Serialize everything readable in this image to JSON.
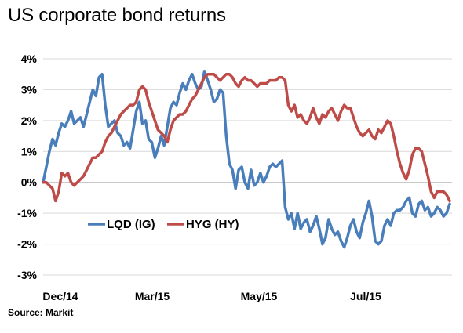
{
  "chart_data": {
    "type": "line",
    "title": "US corporate bond returns",
    "source": "Source: Markit",
    "xlabel": "",
    "ylabel": "",
    "x_ticks": [
      "Dec/14",
      "Mar/15",
      "May/15",
      "Jul/15"
    ],
    "ylim": [
      -3,
      4
    ],
    "y_ticks": [
      "4%",
      "3%",
      "2%",
      "1%",
      "0%",
      "-1%",
      "-2%",
      "-3%"
    ],
    "grid": true,
    "legend_position": "center",
    "series": [
      {
        "name": "LQD (IG)",
        "color": "#4a7ebb",
        "values": [
          0.0,
          0.5,
          1.0,
          1.4,
          1.2,
          1.6,
          1.9,
          1.8,
          2.0,
          2.3,
          1.9,
          2.0,
          2.1,
          1.8,
          2.2,
          2.6,
          3.0,
          2.8,
          3.4,
          3.5,
          2.5,
          1.8,
          1.9,
          2.0,
          1.6,
          1.5,
          1.2,
          1.3,
          1.1,
          1.7,
          2.3,
          2.6,
          1.9,
          2.0,
          1.4,
          1.3,
          0.8,
          1.1,
          1.5,
          1.2,
          1.8,
          2.4,
          2.6,
          2.5,
          2.9,
          3.2,
          3.0,
          3.3,
          3.5,
          3.2,
          3.0,
          3.1,
          3.6,
          3.3,
          3.0,
          2.6,
          2.7,
          3.0,
          2.9,
          1.5,
          0.6,
          0.4,
          -0.2,
          0.4,
          0.5,
          0.0,
          -0.2,
          0.4,
          -0.1,
          0.0,
          0.3,
          0.0,
          0.2,
          0.5,
          0.6,
          0.5,
          0.6,
          0.7,
          -0.8,
          -1.2,
          -1.0,
          -1.5,
          -1.0,
          -1.5,
          -1.3,
          -1.2,
          -1.6,
          -1.4,
          -1.1,
          -1.5,
          -2.0,
          -1.8,
          -1.2,
          -1.5,
          -1.7,
          -1.6,
          -1.9,
          -2.1,
          -1.8,
          -1.4,
          -1.2,
          -1.6,
          -1.8,
          -1.3,
          -1.0,
          -0.6,
          -1.1,
          -1.9,
          -2.0,
          -1.9,
          -1.4,
          -1.2,
          -1.4,
          -1.0,
          -0.9,
          -0.9,
          -0.8,
          -0.6,
          -0.5,
          -1.0,
          -1.1,
          -0.7,
          -0.6,
          -0.9,
          -0.8,
          -1.1,
          -1.0,
          -0.8,
          -0.9,
          -1.1,
          -1.0,
          -0.7
        ]
      },
      {
        "name": "HYG (HY)",
        "color": "#be4b48",
        "values": [
          0.0,
          0.0,
          -0.1,
          -0.2,
          -0.6,
          -0.3,
          0.3,
          0.2,
          0.3,
          0.0,
          -0.1,
          0.0,
          0.1,
          0.2,
          0.4,
          0.6,
          0.8,
          0.8,
          0.9,
          1.0,
          1.3,
          1.5,
          1.6,
          1.8,
          2.0,
          2.2,
          2.3,
          2.4,
          2.5,
          2.5,
          2.6,
          3.0,
          3.1,
          3.0,
          2.6,
          2.3,
          2.0,
          1.7,
          1.6,
          1.5,
          1.3,
          1.7,
          2.0,
          2.1,
          2.2,
          2.2,
          2.3,
          2.5,
          2.7,
          2.8,
          3.0,
          3.2,
          3.4,
          3.5,
          3.5,
          3.5,
          3.4,
          3.3,
          3.4,
          3.5,
          3.5,
          3.4,
          3.2,
          3.1,
          3.3,
          3.4,
          3.3,
          3.3,
          3.2,
          3.1,
          3.2,
          3.2,
          3.2,
          3.3,
          3.3,
          3.3,
          3.4,
          3.4,
          3.3,
          2.5,
          2.3,
          2.5,
          2.1,
          2.2,
          2.0,
          1.9,
          2.1,
          2.4,
          2.1,
          1.9,
          2.2,
          2.1,
          2.3,
          2.4,
          2.2,
          2.0,
          2.3,
          2.5,
          2.4,
          2.4,
          2.1,
          1.8,
          1.6,
          1.5,
          1.6,
          1.7,
          1.5,
          1.4,
          1.7,
          1.6,
          1.8,
          2.0,
          1.9,
          1.5,
          1.0,
          0.6,
          0.3,
          0.1,
          0.4,
          0.9,
          1.1,
          1.1,
          1.0,
          0.6,
          0.2,
          -0.3,
          -0.5,
          -0.3,
          -0.3,
          -0.3,
          -0.4,
          -0.6
        ]
      }
    ]
  }
}
